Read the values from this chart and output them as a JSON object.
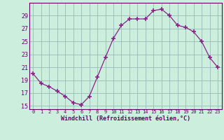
{
  "x": [
    0,
    1,
    2,
    3,
    4,
    5,
    6,
    7,
    8,
    9,
    10,
    11,
    12,
    13,
    14,
    15,
    16,
    17,
    18,
    19,
    20,
    21,
    22,
    23
  ],
  "y": [
    20.0,
    18.5,
    18.0,
    17.3,
    16.5,
    15.5,
    15.2,
    16.5,
    19.5,
    22.5,
    25.5,
    27.5,
    28.5,
    28.5,
    28.5,
    29.8,
    30.0,
    29.0,
    27.5,
    27.2,
    26.5,
    25.0,
    22.5,
    21.0
  ],
  "line_color": "#882288",
  "marker": "D",
  "marker_size": 2.5,
  "bg_color": "#cceedd",
  "grid_color": "#99bbbb",
  "xlabel": "Windchill (Refroidissement éolien,°C)",
  "xlabel_color": "#660066",
  "tick_color": "#660066",
  "axis_line_color": "#660066",
  "ylim": [
    14.5,
    31
  ],
  "xlim": [
    -0.5,
    23.5
  ],
  "yticks": [
    15,
    17,
    19,
    21,
    23,
    25,
    27,
    29
  ],
  "xticks": [
    0,
    1,
    2,
    3,
    4,
    5,
    6,
    7,
    8,
    9,
    10,
    11,
    12,
    13,
    14,
    15,
    16,
    17,
    18,
    19,
    20,
    21,
    22,
    23
  ]
}
